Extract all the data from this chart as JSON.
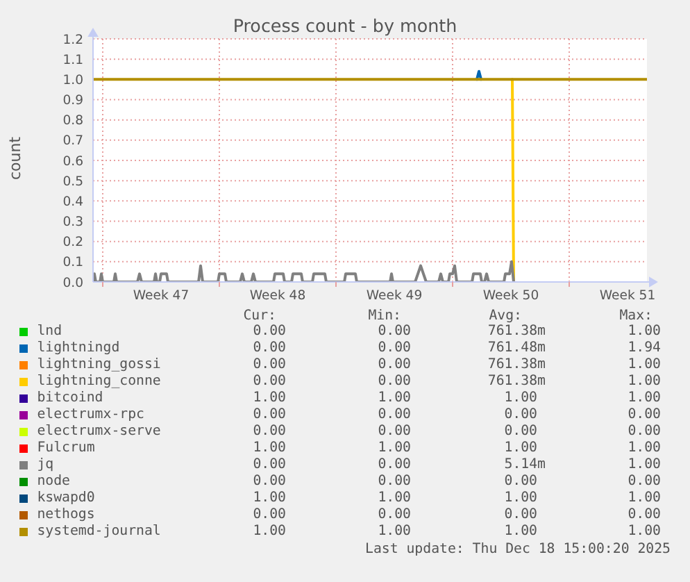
{
  "chart_data": {
    "type": "line",
    "title": "Process count - by month",
    "ylabel": "count",
    "xlim": [
      "2025-11-15T10:00",
      "2025-12-18T16:00"
    ],
    "xticks": [
      {
        "value": "2025-11-16T00:00",
        "label": null
      },
      {
        "value": "2025-11-23T00:00",
        "label": null
      },
      {
        "value": "2025-11-30T00:00",
        "label": null
      },
      {
        "value": "2025-12-07T00:00",
        "label": null
      },
      {
        "value": "2025-12-14T00:00",
        "label": null
      },
      {
        "value": "2025-11-19T12:00",
        "label": "Week 47"
      },
      {
        "value": "2025-11-26T12:00",
        "label": "Week 48"
      },
      {
        "value": "2025-12-03T12:00",
        "label": "Week 49"
      },
      {
        "value": "2025-12-10T12:00",
        "label": "Week 50"
      },
      {
        "value": "2025-12-17T12:00",
        "label": "Week 51"
      }
    ],
    "ylim": [
      0,
      1.2
    ],
    "yticks": [
      {
        "value": 0,
        "label": "0.0"
      },
      0.1,
      0.2,
      0.3,
      0.4,
      0.5,
      0.6,
      0.7,
      0.8,
      0.9,
      {
        "value": 1,
        "label": "1.0"
      },
      1.1,
      1.2
    ],
    "grid": true,
    "legend": "bottom",
    "series": [
      {
        "name": "lnd",
        "color": "#00cc00"
      },
      {
        "name": "lightningd",
        "color": "#0066b3",
        "x": [
          "2025-12-08T11:00",
          "2025-12-08T14:00",
          "2025-12-08T17:00"
        ],
        "values": [
          1,
          1.04,
          1
        ]
      },
      {
        "name": "lightning_gossi",
        "color": "#ff8000"
      },
      {
        "name": "lightning_conne",
        "color": "#ffcc00",
        "x": [
          "2025-12-10T14:00",
          "2025-12-10T16:00"
        ],
        "values": [
          1,
          0
        ]
      },
      {
        "name": "bitcoind",
        "color": "#330099"
      },
      {
        "name": "electrumx-rpc",
        "color": "#990099"
      },
      {
        "name": "electrumx-serve",
        "color": "#ccff00"
      },
      {
        "name": "Fulcrum",
        "color": "#ff0000"
      },
      {
        "name": "jq",
        "color": "#808080",
        "x": [
          "2025-11-15T10:00",
          "2025-11-15T12:00",
          "2025-11-15T14:00",
          "2025-11-15T20:00",
          "2025-11-15T22:00",
          "2025-11-16T00:00",
          "2025-11-16T16:00",
          "2025-11-16T18:00",
          "2025-11-16T20:00",
          "2025-11-18T02:00",
          "2025-11-18T05:00",
          "2025-11-18T08:00",
          "2025-11-19T02:00",
          "2025-11-19T04:00",
          "2025-11-19T06:00",
          "2025-11-19T10:00",
          "2025-11-19T12:00",
          "2025-11-19T20:00",
          "2025-11-19T22:00",
          "2025-11-21T18:00",
          "2025-11-21T21:00",
          "2025-11-22T00:00",
          "2025-11-22T22:00",
          "2025-11-23T00:00",
          "2025-11-23T08:00",
          "2025-11-23T10:00",
          "2025-11-24T06:00",
          "2025-11-24T09:00",
          "2025-11-24T12:00",
          "2025-11-24T22:00",
          "2025-11-25T01:00",
          "2025-11-25T04:00",
          "2025-11-26T06:00",
          "2025-11-26T08:00",
          "2025-11-26T20:00",
          "2025-11-26T22:00",
          "2025-11-27T08:00",
          "2025-11-27T10:00",
          "2025-11-27T22:00",
          "2025-11-28T00:00",
          "2025-11-28T14:00",
          "2025-11-28T16:00",
          "2025-11-29T08:00",
          "2025-11-29T10:00",
          "2025-11-30T12:00",
          "2025-11-30T14:00",
          "2025-12-01T04:00",
          "2025-12-01T06:00",
          "2025-12-03T06:00",
          "2025-12-03T08:00",
          "2025-12-03T10:00",
          "2025-12-04T18:00",
          "2025-12-04T22:00",
          "2025-12-05T02:00",
          "2025-12-05T06:00",
          "2025-12-05T10:00",
          "2025-12-06T04:00",
          "2025-12-06T07:00",
          "2025-12-06T10:00",
          "2025-12-06T18:00",
          "2025-12-06T20:00",
          "2025-12-07T00:00",
          "2025-12-07T03:00",
          "2025-12-07T06:00",
          "2025-12-08T04:00",
          "2025-12-08T06:00",
          "2025-12-08T16:00",
          "2025-12-08T18:00",
          "2025-12-08T22:00",
          "2025-12-09T01:00",
          "2025-12-09T04:00",
          "2025-12-10T02:00",
          "2025-12-10T04:00",
          "2025-12-10T10:00",
          "2025-12-10T13:00",
          "2025-12-10T16:00"
        ],
        "values": [
          0,
          0.04,
          0,
          0,
          0.04,
          0,
          0,
          0.04,
          0,
          0,
          0.04,
          0,
          0,
          0.04,
          0,
          0,
          0.04,
          0.04,
          0,
          0,
          0.08,
          0,
          0,
          0.04,
          0.04,
          0,
          0,
          0.04,
          0,
          0,
          0.04,
          0,
          0,
          0.04,
          0.04,
          0,
          0,
          0.04,
          0.04,
          0,
          0,
          0.04,
          0.04,
          0,
          0,
          0.04,
          0.04,
          0,
          0,
          0.04,
          0,
          0,
          0.04,
          0.08,
          0.04,
          0,
          0,
          0.04,
          0,
          0,
          0.04,
          0.04,
          0.08,
          0,
          0,
          0.04,
          0.04,
          0,
          0,
          0.04,
          0,
          0,
          0.04,
          0.04,
          0.1,
          0
        ]
      },
      {
        "name": "node",
        "color": "#008f00"
      },
      {
        "name": "kswapd0",
        "color": "#00487d"
      },
      {
        "name": "nethogs",
        "color": "#b35a00"
      },
      {
        "name": "systemd-journal",
        "color": "#b38f00",
        "x": [
          "2025-11-15T10:00",
          "2025-12-18T16:00"
        ],
        "values": [
          1,
          1
        ]
      }
    ],
    "annotations": [
      "Cur:",
      "Min:",
      "Avg:",
      "Max:",
      "0.00",
      "0.00",
      "761.38m",
      "1.00",
      "0.00",
      "0.00",
      "761.48m",
      "1.94",
      "0.00",
      "0.00",
      "761.38m",
      "1.00",
      "0.00",
      "0.00",
      "761.38m",
      "1.00",
      "1.00",
      "1.00",
      "1.00",
      "1.00",
      "0.00",
      "0.00",
      "0.00",
      "0.00",
      "0.00",
      "0.00",
      "0.00",
      "0.00",
      "1.00",
      "1.00",
      "1.00",
      "1.00",
      "0.00",
      "0.00",
      "5.14m",
      "1.00",
      "0.00",
      "0.00",
      "0.00",
      "0.00",
      "1.00",
      "1.00",
      "1.00",
      "1.00",
      "0.00",
      "0.00",
      "0.00",
      "0.00",
      "1.00",
      "1.00",
      "1.00",
      "1.00",
      "Last update: Thu Dec 18 15:00:20 2025"
    ]
  }
}
